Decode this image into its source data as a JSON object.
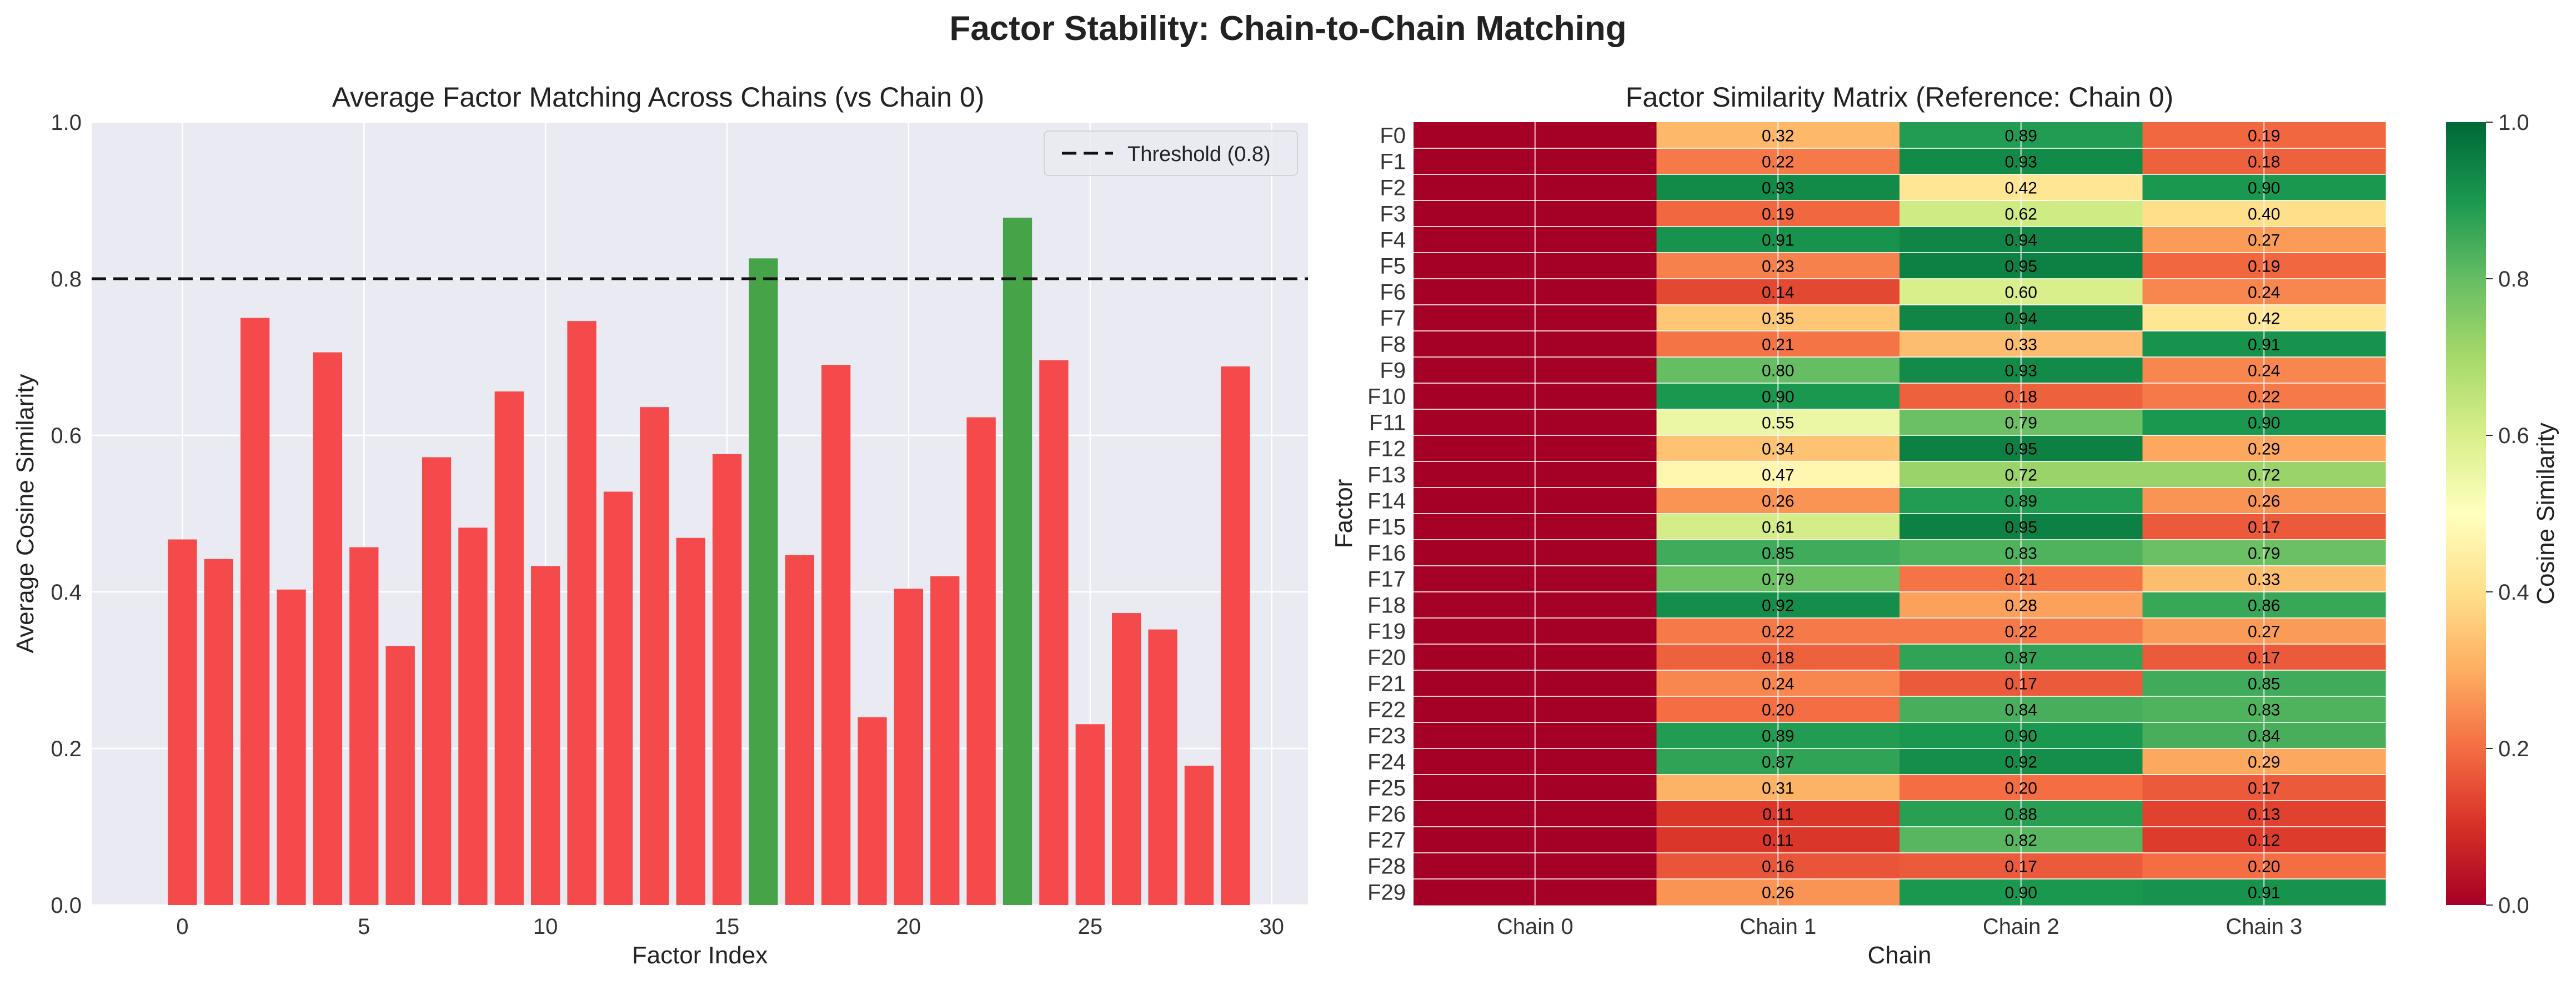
{
  "figure": {
    "suptitle": "Factor Stability: Chain-to-Chain Matching"
  },
  "chart_data": [
    {
      "type": "bar",
      "title": "Average Factor Matching Across Chains (vs Chain 0)",
      "xlabel": "Factor Index",
      "ylabel": "Average Cosine Similarity",
      "xlim": [
        -2.5,
        31
      ],
      "ylim": [
        0,
        1.0
      ],
      "xticks": [
        0,
        5,
        10,
        15,
        20,
        25,
        30
      ],
      "yticks": [
        0.0,
        0.2,
        0.4,
        0.6,
        0.8,
        1.0
      ],
      "grid": true,
      "categories": [
        0,
        1,
        2,
        3,
        4,
        5,
        6,
        7,
        8,
        9,
        10,
        11,
        12,
        13,
        14,
        15,
        16,
        17,
        18,
        19,
        20,
        21,
        22,
        23,
        24,
        25,
        26,
        27,
        28,
        29
      ],
      "values": [
        0.467,
        0.442,
        0.75,
        0.403,
        0.706,
        0.457,
        0.331,
        0.572,
        0.482,
        0.656,
        0.433,
        0.746,
        0.528,
        0.636,
        0.469,
        0.576,
        0.826,
        0.447,
        0.69,
        0.24,
        0.404,
        0.42,
        0.623,
        0.878,
        0.696,
        0.231,
        0.373,
        0.352,
        0.178,
        0.688
      ],
      "threshold": {
        "value": 0.8,
        "label": "Threshold (0.8)"
      },
      "legend_position": "top-right",
      "colors": {
        "below": "#f44a4c",
        "above": "#47a348",
        "background": "#eaeaf2",
        "grid": "#ffffff"
      }
    },
    {
      "type": "heatmap",
      "title": "Factor Similarity Matrix (Reference: Chain 0)",
      "xlabel": "Chain",
      "ylabel": "Factor",
      "columns": [
        "Chain 0",
        "Chain 1",
        "Chain 2",
        "Chain 3"
      ],
      "rows": [
        "F0",
        "F1",
        "F2",
        "F3",
        "F4",
        "F5",
        "F6",
        "F7",
        "F8",
        "F9",
        "F10",
        "F11",
        "F12",
        "F13",
        "F14",
        "F15",
        "F16",
        "F17",
        "F18",
        "F19",
        "F20",
        "F21",
        "F22",
        "F23",
        "F24",
        "F25",
        "F26",
        "F27",
        "F28",
        "F29"
      ],
      "values": [
        [
          null,
          0.32,
          0.89,
          0.19
        ],
        [
          null,
          0.22,
          0.93,
          0.18
        ],
        [
          null,
          0.93,
          0.42,
          0.9
        ],
        [
          null,
          0.19,
          0.62,
          0.4
        ],
        [
          null,
          0.91,
          0.94,
          0.27
        ],
        [
          null,
          0.23,
          0.95,
          0.19
        ],
        [
          null,
          0.14,
          0.6,
          0.24
        ],
        [
          null,
          0.35,
          0.94,
          0.42
        ],
        [
          null,
          0.21,
          0.33,
          0.91
        ],
        [
          null,
          0.8,
          0.93,
          0.24
        ],
        [
          null,
          0.9,
          0.18,
          0.22
        ],
        [
          null,
          0.55,
          0.79,
          0.9
        ],
        [
          null,
          0.34,
          0.95,
          0.29
        ],
        [
          null,
          0.47,
          0.72,
          0.72
        ],
        [
          null,
          0.26,
          0.89,
          0.26
        ],
        [
          null,
          0.61,
          0.95,
          0.17
        ],
        [
          null,
          0.85,
          0.83,
          0.79
        ],
        [
          null,
          0.79,
          0.21,
          0.33
        ],
        [
          null,
          0.92,
          0.28,
          0.86
        ],
        [
          null,
          0.22,
          0.22,
          0.27
        ],
        [
          null,
          0.18,
          0.87,
          0.17
        ],
        [
          null,
          0.24,
          0.17,
          0.85
        ],
        [
          null,
          0.2,
          0.84,
          0.83
        ],
        [
          null,
          0.89,
          0.9,
          0.84
        ],
        [
          null,
          0.87,
          0.92,
          0.29
        ],
        [
          null,
          0.31,
          0.2,
          0.17
        ],
        [
          null,
          0.11,
          0.88,
          0.13
        ],
        [
          null,
          0.11,
          0.82,
          0.12
        ],
        [
          null,
          0.16,
          0.17,
          0.2
        ],
        [
          null,
          0.26,
          0.9,
          0.91
        ]
      ],
      "chain0_fill": 0.0,
      "colormap": "RdYlGn",
      "vmin": 0.0,
      "vmax": 1.0,
      "colorbar": {
        "label": "Cosine Similarity",
        "ticks": [
          0.0,
          0.2,
          0.4,
          0.6,
          0.8,
          1.0
        ]
      }
    }
  ]
}
